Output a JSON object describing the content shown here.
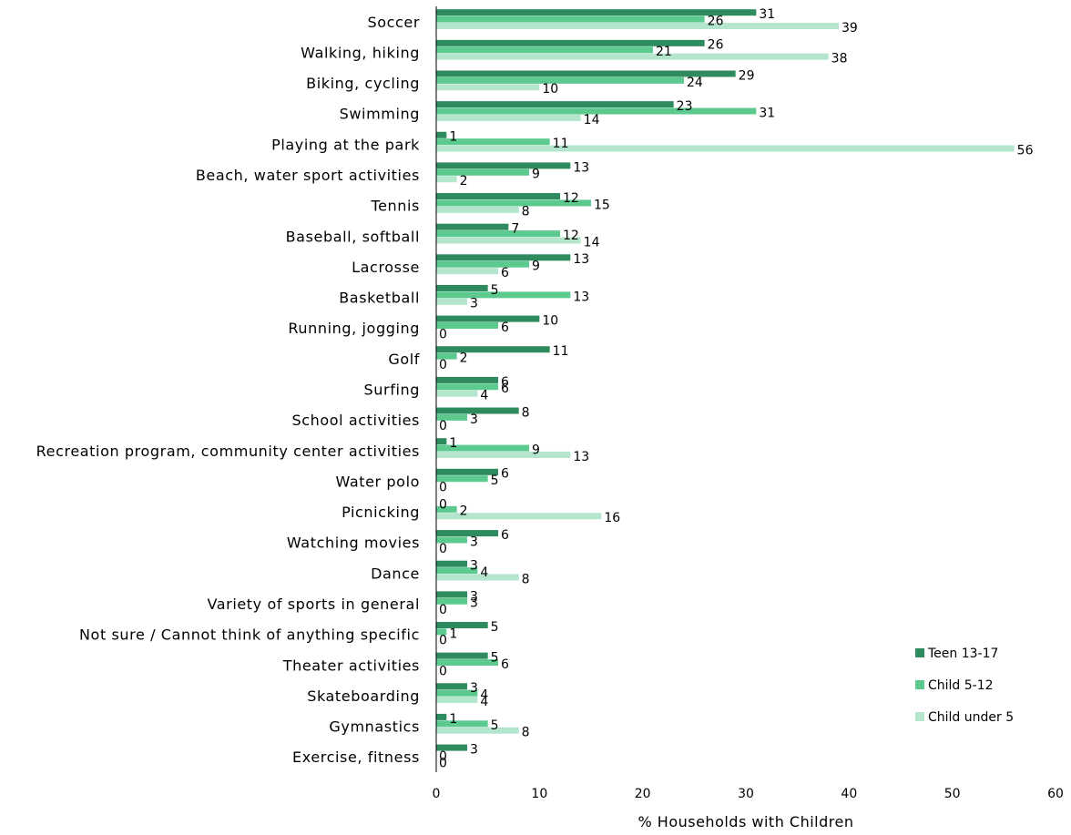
{
  "chart_data": {
    "type": "bar",
    "orientation": "horizontal",
    "categories": [
      "Soccer",
      "Walking, hiking",
      "Biking, cycling",
      "Swimming",
      "Playing at the park",
      "Beach, water sport activities",
      "Tennis",
      "Baseball, softball",
      "Lacrosse",
      "Basketball",
      "Running, jogging",
      "Golf",
      "Surfing",
      "School activities",
      "Recreation program, community center activities",
      "Water polo",
      "Picnicking",
      "Watching movies",
      "Dance",
      "Variety of sports in general",
      "Not sure / Cannot think of anything specific",
      "Theater activities",
      "Skateboarding",
      "Gymnastics",
      "Exercise, fitness"
    ],
    "series": [
      {
        "name": "Teen 13-17",
        "color": "#2e8b5e",
        "values": [
          31,
          26,
          29,
          23,
          1,
          13,
          12,
          7,
          13,
          5,
          10,
          11,
          6,
          8,
          1,
          6,
          0,
          6,
          3,
          3,
          5,
          5,
          3,
          1,
          3
        ]
      },
      {
        "name": "Child 5-12",
        "color": "#5cc98f",
        "values": [
          26,
          21,
          24,
          31,
          11,
          9,
          15,
          12,
          9,
          13,
          6,
          2,
          6,
          3,
          9,
          5,
          2,
          3,
          4,
          3,
          1,
          6,
          4,
          5,
          0
        ]
      },
      {
        "name": "Child under 5",
        "color": "#b3e6cc",
        "values": [
          39,
          38,
          10,
          14,
          56,
          2,
          8,
          14,
          6,
          3,
          0,
          0,
          4,
          0,
          13,
          0,
          16,
          0,
          8,
          0,
          0,
          0,
          4,
          8,
          0
        ]
      }
    ],
    "xlabel": "% Households with Children",
    "ylabel": "",
    "xlim": [
      0,
      60
    ],
    "xticks": [
      0,
      10,
      20,
      30,
      40,
      50,
      60
    ],
    "grid": false,
    "legend_position": "bottom-right"
  }
}
